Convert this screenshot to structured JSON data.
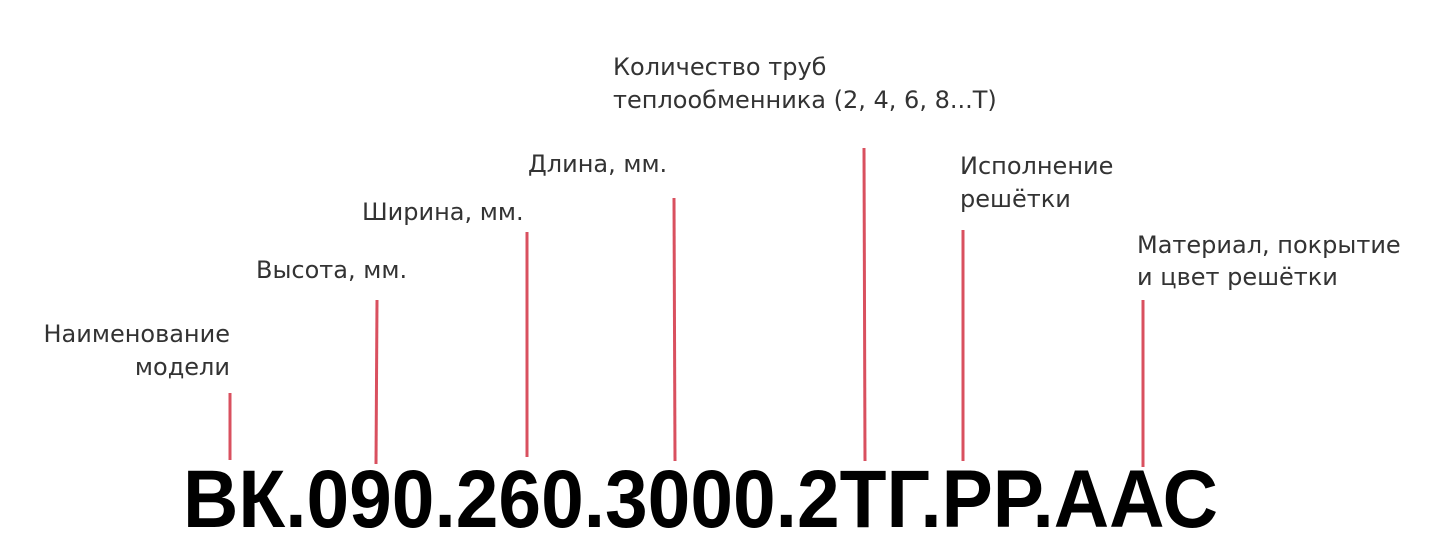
{
  "labels": [
    {
      "lines": [
        "Наименование",
        "модели"
      ]
    },
    {
      "lines": [
        "Высота, мм."
      ]
    },
    {
      "lines": [
        "Ширина, мм."
      ]
    },
    {
      "lines": [
        "Длина, мм."
      ]
    },
    {
      "lines": [
        "Количество труб",
        "теплообменника (2, 4, 6, 8...Т)"
      ]
    },
    {
      "lines": [
        "Исполнение",
        "решётки"
      ]
    },
    {
      "lines": [
        "Материал, покрытие",
        "и цвет решётки"
      ]
    }
  ],
  "code": "ВК.090.260.3000.2ТГ.РР.ААС"
}
